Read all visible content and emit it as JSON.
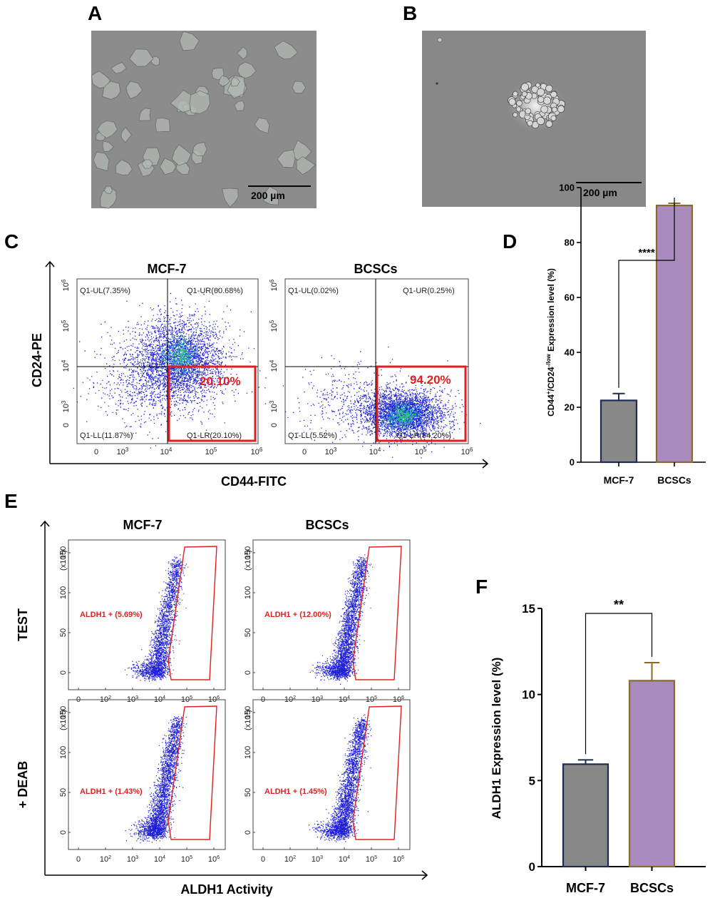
{
  "panels": {
    "A": {
      "label": "A",
      "scalebar": "200 µm"
    },
    "B": {
      "label": "B",
      "scalebar": "200 µm"
    },
    "C": {
      "label": "C",
      "x_axis": "CD44-FITC",
      "y_axis": "CD24-PE",
      "x_ticks": [
        "0",
        "10",
        "10",
        "10",
        "10"
      ],
      "x_exps": [
        "",
        "3",
        "4",
        "5",
        "6"
      ],
      "plots": [
        {
          "title": "MCF-7",
          "UL": "Q1-UL(7.35%)",
          "UR": "Q1-UR(60.68%)",
          "LL": "Q1-LL(11.87%)",
          "LR": "Q1-LR(20.10%)",
          "highlight": "20.10%"
        },
        {
          "title": "BCSCs",
          "UL": "Q1-UL(0.02%)",
          "UR": "Q1-UR(0.25%)",
          "LL": "Q1-LL(5.52%)",
          "LR": "Q1-LR(94.20%)",
          "highlight": "94.20%"
        }
      ]
    },
    "D": {
      "label": "D"
    },
    "E": {
      "label": "E",
      "x_axis": "ALDH1 Activity",
      "row_labels": [
        "TEST",
        "+ DEAB"
      ],
      "col_titles": [
        "MCF-7",
        "BCSCs"
      ],
      "y_mult": "(x10",
      "y_mult_exp": "3",
      "gates": [
        {
          "text": "ALDH1 + (5.69%)"
        },
        {
          "text": "ALDH1 + (12.00%)"
        },
        {
          "text": "ALDH1 + (1.43%)"
        },
        {
          "text": "ALDH1 + (1.45%)"
        }
      ]
    },
    "F": {
      "label": "F"
    }
  },
  "chart_data": [
    {
      "panel": "D",
      "type": "bar",
      "categories": [
        "MCF-7",
        "BCSCs"
      ],
      "values": [
        22.5,
        93.5
      ],
      "errors": [
        2.5,
        0.8
      ],
      "ylabel_main": "CD44",
      "ylabel_sup1": "+",
      "ylabel_mid": "/CD24",
      "ylabel_sup2": "-/low",
      "ylabel_tail": " Expression level (%)",
      "ylim": [
        0,
        100
      ],
      "yticks": [
        0,
        20,
        40,
        60,
        80,
        100
      ],
      "yticklabels": [
        "0",
        "20",
        "40",
        "60",
        "80",
        "100"
      ],
      "significance": "****",
      "colors": [
        "#888888",
        "#a98bbd"
      ],
      "edge_colors": [
        "#1e2b52",
        "#8a6a2c"
      ]
    },
    {
      "panel": "F",
      "type": "bar",
      "categories": [
        "MCF-7",
        "BCSCs"
      ],
      "values": [
        5.95,
        10.8
      ],
      "errors": [
        0.25,
        1.05
      ],
      "ylabel": "ALDH1  Expression level (%)",
      "ylim": [
        0,
        15
      ],
      "yticks": [
        0,
        5,
        10,
        15
      ],
      "yticklabels": [
        "0",
        "5",
        "10",
        "15"
      ],
      "significance": "**",
      "colors": [
        "#888888",
        "#a98bbd"
      ],
      "edge_colors": [
        "#1e2b52",
        "#8a6a2c"
      ]
    }
  ],
  "colors": {
    "gate_red": "#e02020",
    "dots_blue": "#1f1fd6"
  }
}
